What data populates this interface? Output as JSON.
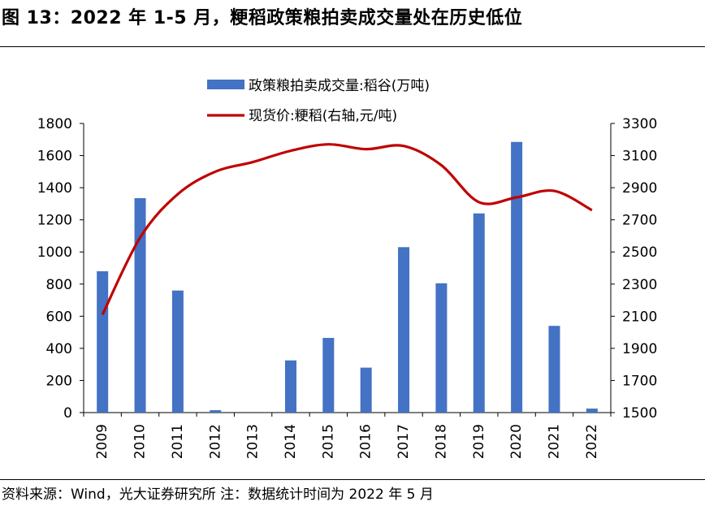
{
  "figure": {
    "title": "图 13：2022 年 1-5 月，粳稻政策粮拍卖成交量处在历史低位",
    "source_note": "资料来源：Wind，光大证券研究所 注：数据统计时间为 2022 年 5 月"
  },
  "chart_data": {
    "type": "bar+line",
    "categories": [
      "2009",
      "2010",
      "2011",
      "2012",
      "2013",
      "2014",
      "2015",
      "2016",
      "2017",
      "2018",
      "2019",
      "2020",
      "2021",
      "2022"
    ],
    "series": [
      {
        "name": "政策粮拍卖成交量:稻谷(万吨)",
        "type": "bar",
        "axis": "left",
        "color": "#4472C4",
        "values": [
          880,
          1335,
          760,
          15,
          0,
          325,
          465,
          280,
          1030,
          805,
          1240,
          1685,
          540,
          25
        ]
      },
      {
        "name": "现货价:粳稻(右轴,元/吨)",
        "type": "line",
        "axis": "right",
        "color": "#C00000",
        "values": [
          2110,
          2590,
          2860,
          3000,
          3060,
          3130,
          3170,
          3140,
          3160,
          3040,
          2810,
          2840,
          2880,
          2760
        ]
      }
    ],
    "y_left": {
      "ylim": [
        0,
        1800
      ],
      "ticks": [
        "0",
        "200",
        "400",
        "600",
        "800",
        "1000",
        "1200",
        "1400",
        "1600",
        "1800"
      ]
    },
    "y_right": {
      "ylim": [
        1500,
        3300
      ],
      "ticks": [
        "1500",
        "1700",
        "1900",
        "2100",
        "2300",
        "2500",
        "2700",
        "2900",
        "3100",
        "3300"
      ]
    },
    "grid": false,
    "legend_position": "top-center"
  }
}
